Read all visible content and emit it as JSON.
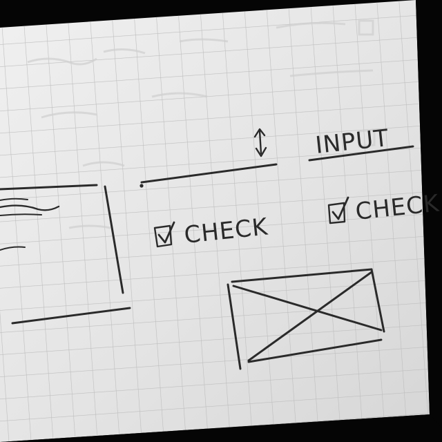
{
  "sketch": {
    "input_label": "INPUT",
    "checkbox_left_label": "CHECK",
    "checkbox_right_label": "CHECK",
    "colors": {
      "paper": "#e7e7e7",
      "grid": "#bdbdbd",
      "pencil": "#2a2a2a",
      "shadow": "#000000"
    },
    "icons": {
      "stepper": "up-down-arrows",
      "check": "checked-box",
      "placeholder": "crossed-box"
    }
  }
}
